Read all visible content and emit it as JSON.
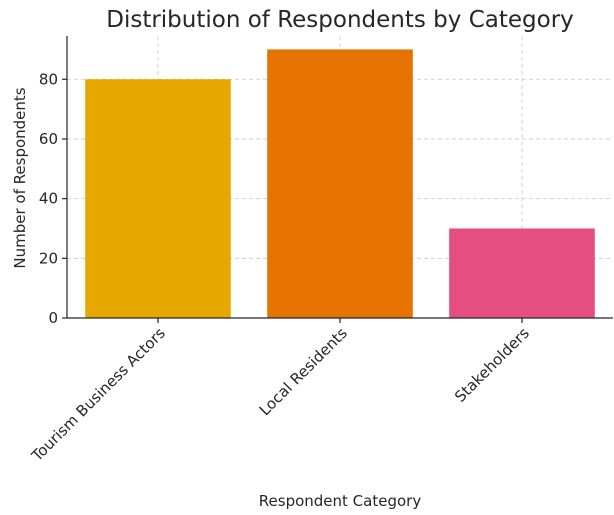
{
  "chart_data": {
    "type": "bar",
    "title": "Distribution of Respondents by Category",
    "xlabel": "Respondent Category",
    "ylabel": "Number of Respondents",
    "categories": [
      "Tourism Business Actors",
      "Local Residents",
      "Stakeholders"
    ],
    "values": [
      80,
      90,
      30
    ],
    "colors": [
      "#e6a800",
      "#e67300",
      "#e64d80"
    ],
    "ylim": [
      0,
      94.5
    ],
    "yticks": [
      0,
      20,
      40,
      60,
      80
    ],
    "grid": true,
    "xtick_rotation": -45
  }
}
